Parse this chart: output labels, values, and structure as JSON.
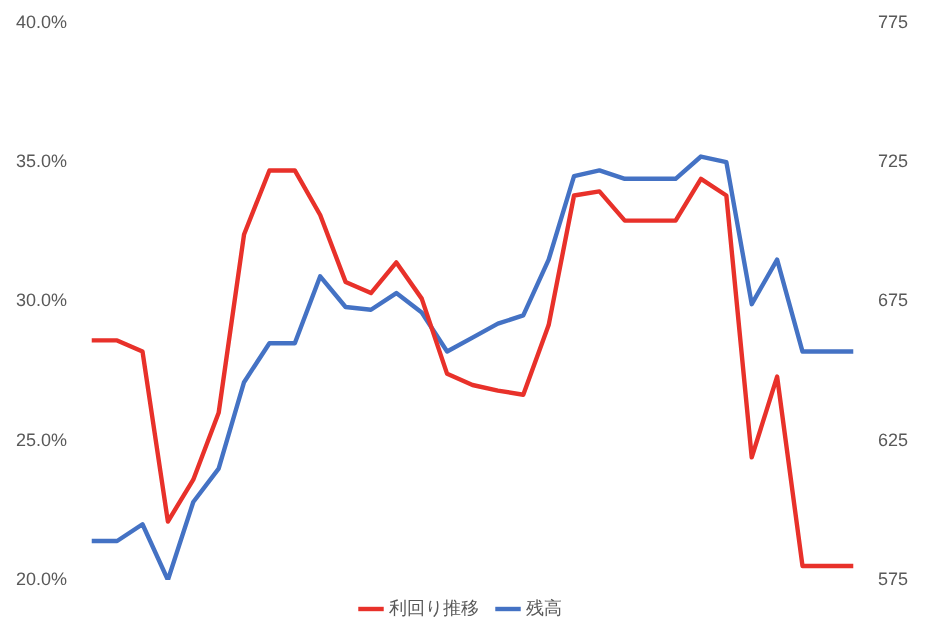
{
  "chart_data": {
    "type": "line",
    "categories": [
      null,
      null,
      null,
      null,
      null,
      null,
      null,
      null,
      null,
      null,
      null,
      null,
      null,
      null,
      null,
      null,
      null,
      null,
      null,
      null,
      null,
      null,
      null,
      null,
      null,
      null,
      null,
      null,
      null,
      null,
      null
    ],
    "series": [
      {
        "name": "利回り推移",
        "color": "#e8312a",
        "values": [
          28.6,
          28.6,
          28.2,
          22.1,
          23.6,
          26.0,
          32.4,
          34.7,
          34.7,
          33.1,
          30.7,
          30.3,
          31.4,
          30.1,
          27.4,
          27.0,
          26.8,
          26.65,
          29.15,
          33.8,
          33.95,
          32.9,
          32.9,
          32.9,
          34.4,
          33.8,
          24.4,
          27.3,
          20.5,
          20.5,
          20.5
        ]
      },
      {
        "name": "残高",
        "color": "#4472c4",
        "axis": "y2",
        "values": [
          589,
          589,
          595,
          575,
          603,
          615,
          646,
          660,
          660,
          684,
          673,
          672,
          678,
          671,
          657,
          662,
          667,
          670,
          690,
          720,
          722,
          719,
          719,
          719,
          727,
          725,
          674,
          690,
          657,
          657,
          657
        ]
      }
    ],
    "ylim": [
      20,
      40
    ],
    "yticks": [
      {
        "value": 20,
        "label": "20.0%"
      },
      {
        "value": 25,
        "label": "25.0%"
      },
      {
        "value": 30,
        "label": "30.0%"
      },
      {
        "value": 35,
        "label": "35.0%"
      },
      {
        "value": 40,
        "label": "40.0%"
      }
    ],
    "y2lim": [
      575,
      775
    ],
    "y2ticks": [
      575,
      625,
      675,
      725,
      775
    ],
    "grid": false,
    "legend": "bottom",
    "marker": "none",
    "line_style": "solid",
    "tick_labels": "y"
  }
}
